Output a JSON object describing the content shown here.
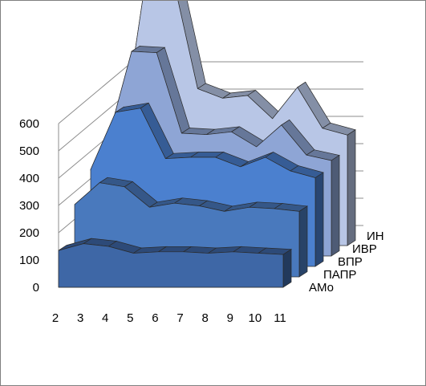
{
  "chart_data": {
    "type": "area",
    "subtype": "3d-area",
    "title": "",
    "categories": [
      "2",
      "3",
      "4",
      "5",
      "6",
      "7",
      "8",
      "9",
      "10",
      "11"
    ],
    "ylim": [
      0,
      600
    ],
    "y_ticks": [
      "0",
      "100",
      "200",
      "300",
      "400",
      "500",
      "600"
    ],
    "grid": true,
    "legend": "none",
    "series": [
      {
        "name": "АМо",
        "color": "#3e67a6",
        "values": [
          135,
          160,
          150,
          125,
          130,
          130,
          125,
          130,
          125,
          120
        ]
      },
      {
        "name": "ПАПР",
        "color": "#4979bd",
        "values": [
          130,
          185,
          180,
          130,
          140,
          130,
          115,
          125,
          125,
          120
        ]
      },
      {
        "name": "ВПР",
        "color": "#4b80cf",
        "values": [
          90,
          220,
          250,
          140,
          130,
          140,
          125,
          145,
          100,
          85
        ]
      },
      {
        "name": "ИВР",
        "color": "#8ea5d5",
        "values": [
          55,
          185,
          165,
          55,
          45,
          55,
          35,
          80,
          20,
          25
        ]
      },
      {
        "name": "ИН",
        "color": "#b8c6e6",
        "values": [
          0,
          275,
          240,
          125,
          95,
          95,
          65,
          100,
          60,
          55
        ]
      }
    ]
  }
}
